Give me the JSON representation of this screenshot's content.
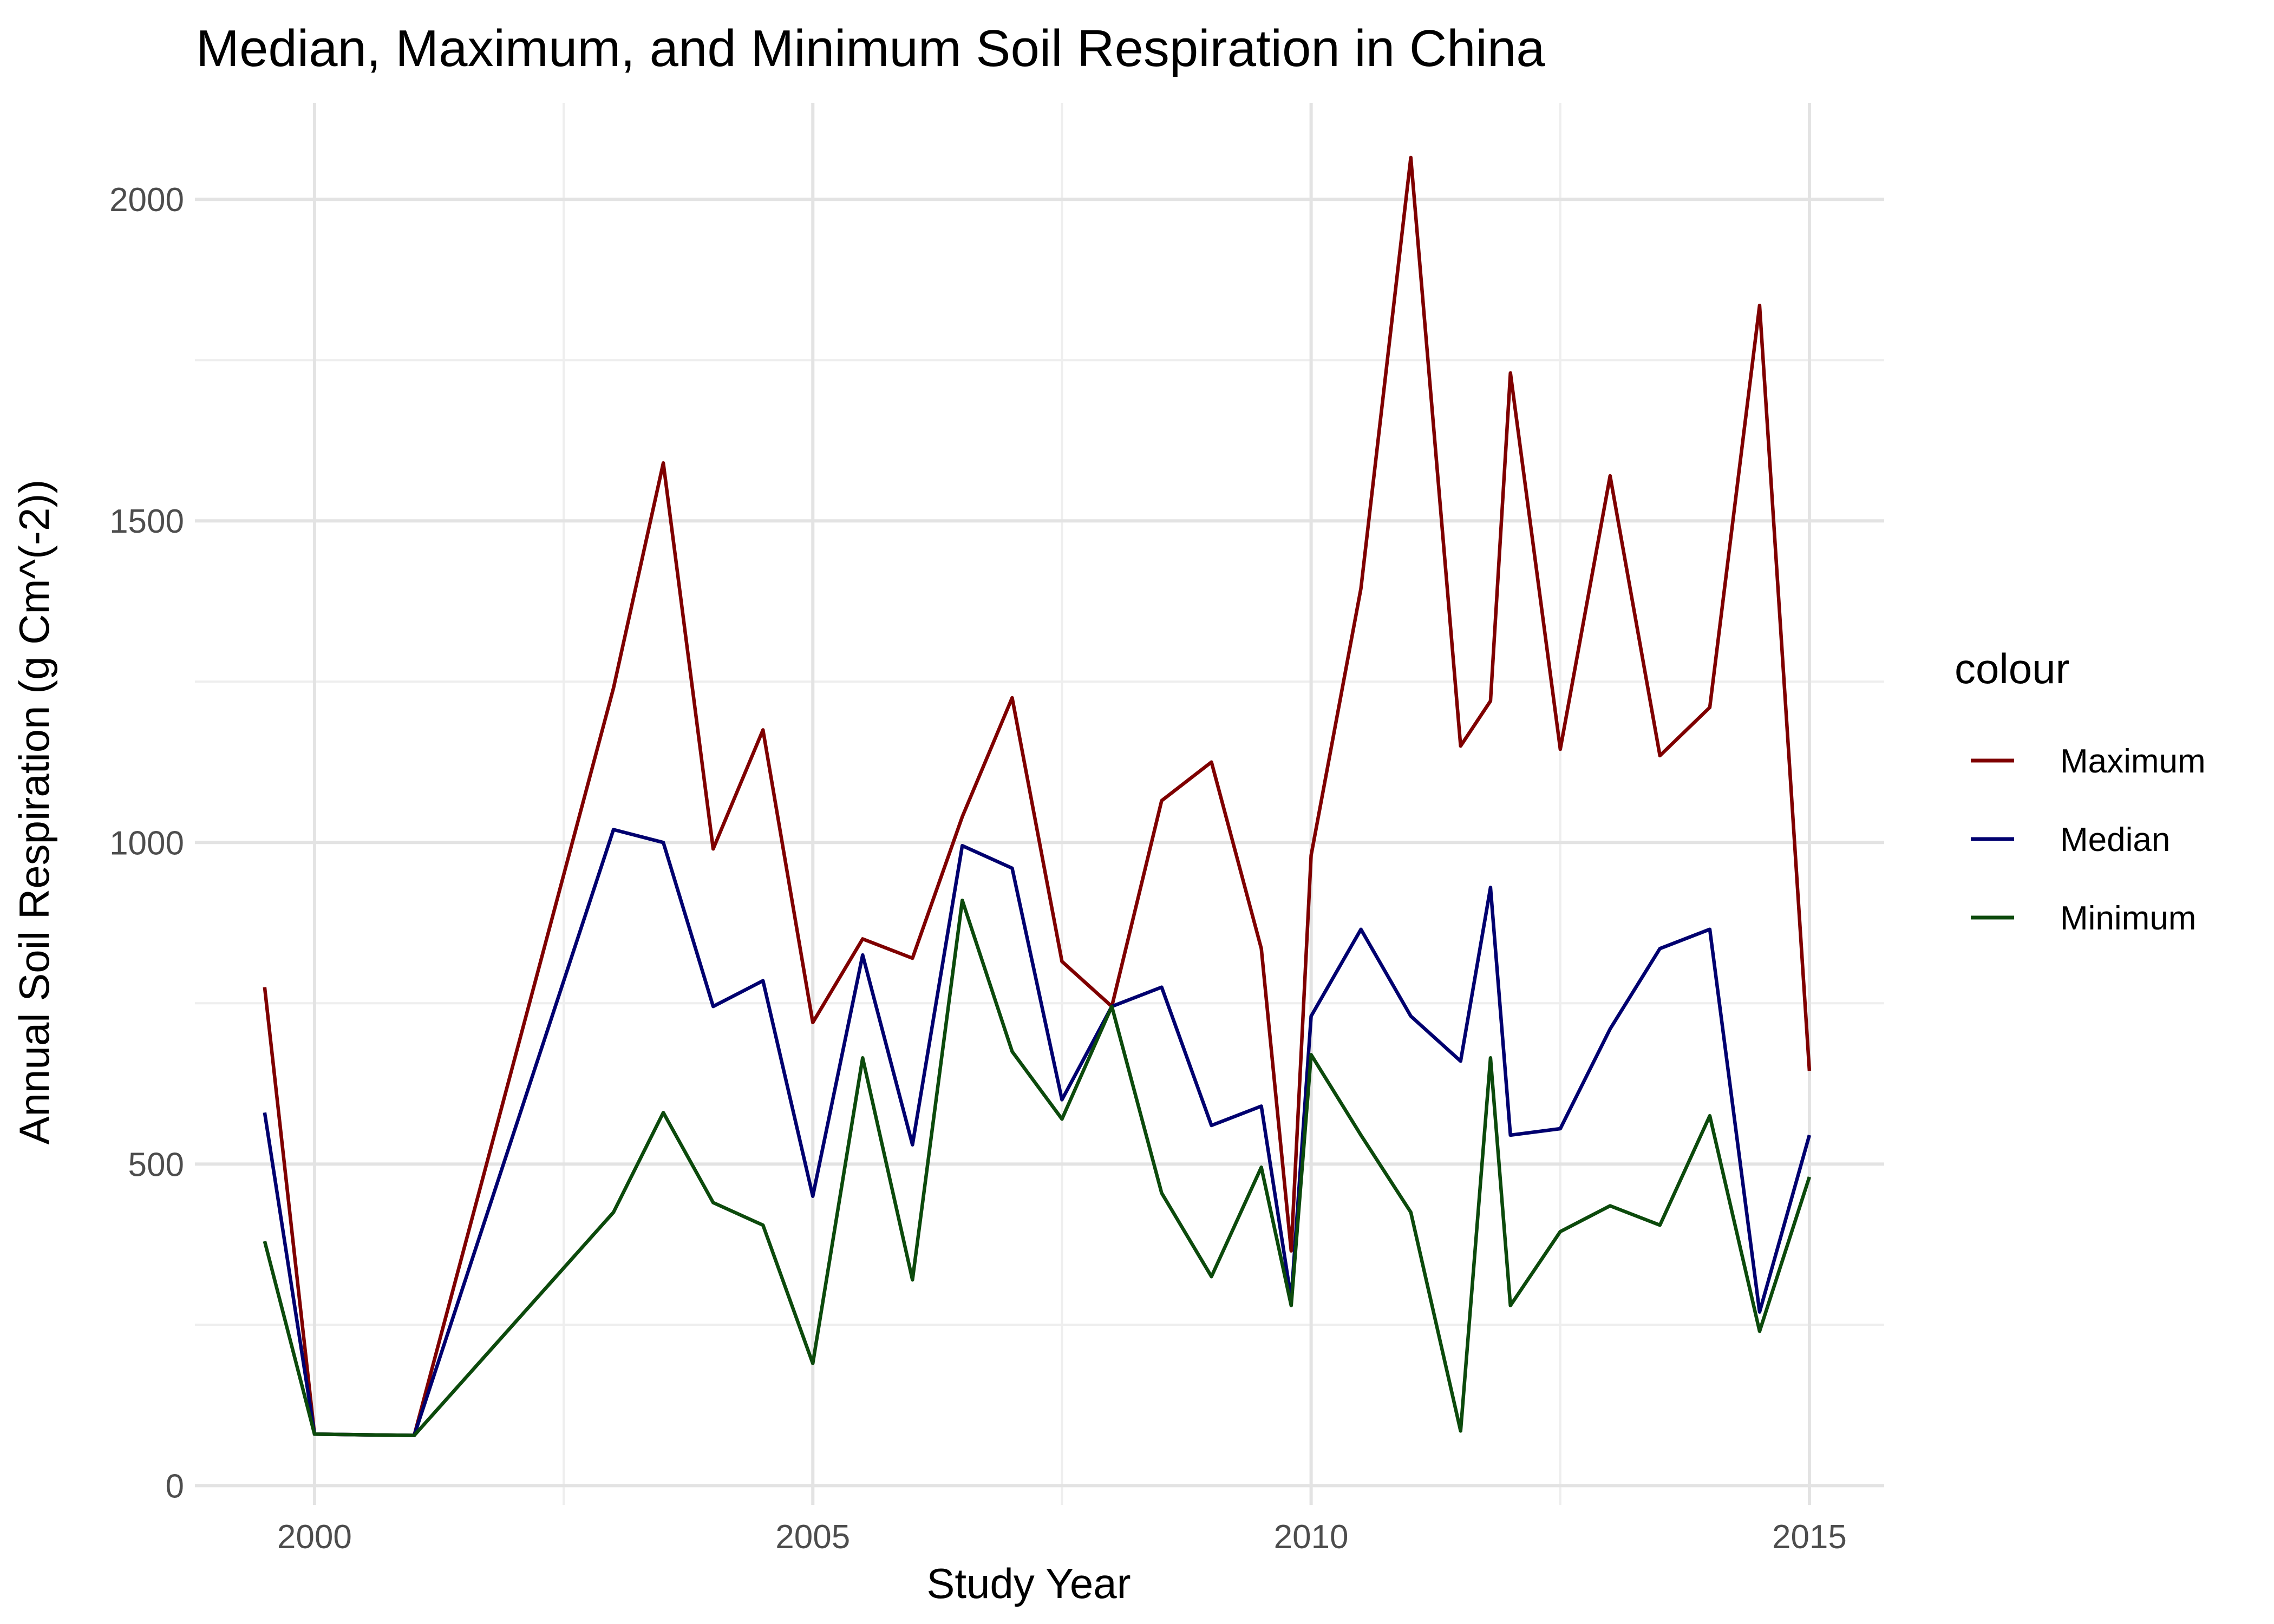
{
  "chart_data": {
    "type": "line",
    "title": "Median, Maximum, and Minimum Soil Respiration in China",
    "xlabel": "Study Year",
    "ylabel": "Annual Soil Respiration (g Cm^(-2))",
    "xlim": [
      1998.8,
      2015.75
    ],
    "ylim": [
      -30,
      2150
    ],
    "xticks": [
      2000,
      2005,
      2010,
      2015
    ],
    "xtick_labels": [
      "2000",
      "2005",
      "2010",
      "2015"
    ],
    "yticks": [
      0,
      500,
      1000,
      1500,
      2000
    ],
    "ytick_labels": [
      "0",
      "500",
      "1000",
      "1500",
      "2000"
    ],
    "grid": true,
    "legend": {
      "title": "colour",
      "position": "right",
      "entries": [
        "Maximum",
        "Median",
        "Minimum"
      ]
    },
    "series": [
      {
        "name": "Maximum",
        "color": "#7f0000",
        "x": [
          1999.5,
          2000,
          2001,
          2003,
          2003.5,
          2004,
          2004.5,
          2005,
          2005.5,
          2006,
          2006.5,
          2007,
          2007.5,
          2008,
          2008.5,
          2009,
          2009.5,
          2009.8,
          2010,
          2010.5,
          2011,
          2011.5,
          2011.8,
          2012,
          2012.5,
          2013,
          2013.5,
          2014,
          2014.5,
          2015
        ],
        "y": [
          775,
          80,
          78,
          1240,
          1590,
          990,
          1175,
          720,
          850,
          820,
          1040,
          1225,
          815,
          745,
          1065,
          1125,
          835,
          365,
          980,
          1395,
          2065,
          1150,
          1220,
          1730,
          1145,
          1570,
          1135,
          1210,
          1835,
          645
        ]
      },
      {
        "name": "Median",
        "color": "#00006f",
        "x": [
          1999.5,
          2000,
          2001,
          2003,
          2003.5,
          2004,
          2004.5,
          2005,
          2005.5,
          2006,
          2006.5,
          2007,
          2007.5,
          2008,
          2008.5,
          2009,
          2009.5,
          2009.8,
          2010,
          2010.5,
          2011,
          2011.5,
          2011.8,
          2012,
          2012.5,
          2013,
          2013.5,
          2014,
          2014.5,
          2015
        ],
        "y": [
          580,
          80,
          78,
          1020,
          1000,
          745,
          785,
          450,
          825,
          530,
          995,
          960,
          600,
          745,
          775,
          560,
          590,
          290,
          730,
          865,
          730,
          660,
          930,
          545,
          555,
          710,
          835,
          865,
          270,
          545
        ]
      },
      {
        "name": "Minimum",
        "color": "#0c4a0c",
        "x": [
          1999.5,
          2000,
          2001,
          2003,
          2003.5,
          2004,
          2004.5,
          2005,
          2005.5,
          2006,
          2006.5,
          2007,
          2007.5,
          2008,
          2008.5,
          2009,
          2009.5,
          2009.8,
          2010,
          2010.5,
          2011,
          2011.5,
          2011.8,
          2012,
          2012.5,
          2013,
          2013.5,
          2014,
          2014.5,
          2015
        ],
        "y": [
          380,
          80,
          78,
          425,
          580,
          440,
          405,
          190,
          665,
          320,
          910,
          675,
          570,
          745,
          455,
          325,
          495,
          280,
          670,
          545,
          425,
          85,
          665,
          280,
          395,
          435,
          405,
          575,
          240,
          480
        ]
      }
    ]
  }
}
